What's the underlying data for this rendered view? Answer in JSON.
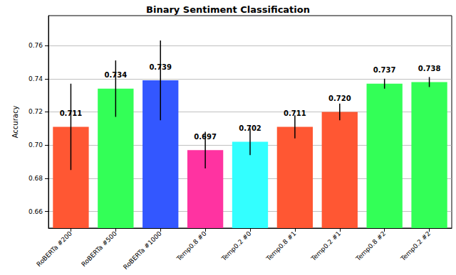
{
  "chart_data": {
    "type": "bar",
    "title": "Binary Sentiment Classification",
    "y_label": "Accuracy",
    "categories": [
      "RoBERTa #200",
      "RoBERTa #500",
      "RoBERTa #1000",
      "Temp0.8 #0",
      "Temp0.2 #0",
      "Temp0.8 #1",
      "Temp0.2 #1",
      "Temp0.8 #2",
      "Temp0.2 #2"
    ],
    "values": [
      0.711,
      0.734,
      0.739,
      0.697,
      0.702,
      0.711,
      0.72,
      0.737,
      0.738
    ],
    "value_labels": [
      "0.711",
      "0.734",
      "0.739",
      "0.697",
      "0.702",
      "0.711",
      "0.720",
      "0.737",
      "0.738"
    ],
    "errors": [
      0.026,
      0.017,
      0.024,
      0.011,
      0.008,
      0.007,
      0.005,
      0.003,
      0.003
    ],
    "colors": [
      "#ff5733",
      "#33ff57",
      "#3357ff",
      "#ff33a1",
      "#33ffff",
      "#ff5733",
      "#ff5733",
      "#33ff57",
      "#33ff57"
    ],
    "ylim": [
      0.65,
      0.778
    ],
    "yticks": [
      0.66,
      0.68,
      {
        "value": 0.7,
        "label": "0.70"
      },
      0.72,
      0.74,
      0.76
    ],
    "grid": true,
    "data_labels": true
  }
}
